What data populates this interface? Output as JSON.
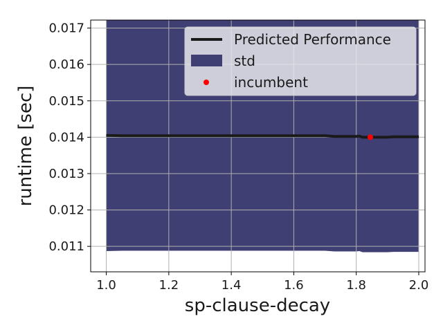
{
  "chart_data": {
    "type": "line",
    "xlabel": "sp-clause-decay",
    "ylabel": "runtime [sec]",
    "xlim": [
      0.95,
      2.02
    ],
    "ylim": [
      0.0103,
      0.01722
    ],
    "x_ticks": [
      1.0,
      1.2,
      1.4,
      1.6,
      1.8,
      2.0
    ],
    "x_tick_labels": [
      "1.0",
      "1.2",
      "1.4",
      "1.6",
      "1.8",
      "2.0"
    ],
    "y_ticks": [
      0.011,
      0.012,
      0.013,
      0.014,
      0.015,
      0.016,
      0.017
    ],
    "y_tick_labels": [
      "0.011",
      "0.012",
      "0.013",
      "0.014",
      "0.015",
      "0.016",
      "0.017"
    ],
    "grid": true,
    "legend_position": "top-right",
    "legend": [
      "Predicted Performance",
      "std",
      "incumbent"
    ],
    "series": [
      {
        "name": "Predicted Performance",
        "color": "#1a1a1a",
        "x": [
          1.0,
          1.05,
          1.1,
          1.2,
          1.3,
          1.4,
          1.5,
          1.6,
          1.7,
          1.73,
          1.75,
          1.8,
          1.81,
          1.82,
          1.85,
          1.9,
          1.92,
          1.95,
          2.0
        ],
        "y": [
          0.01405,
          0.01404,
          0.01404,
          0.01404,
          0.01404,
          0.01404,
          0.01404,
          0.01404,
          0.01404,
          0.01402,
          0.01402,
          0.01402,
          0.01403,
          0.014,
          0.014,
          0.014,
          0.01401,
          0.01401,
          0.01401
        ]
      },
      {
        "name": "std",
        "color": "#3f3f73",
        "x": [
          1.0,
          1.05,
          1.1,
          1.2,
          1.3,
          1.4,
          1.5,
          1.6,
          1.7,
          1.73,
          1.75,
          1.8,
          1.81,
          1.82,
          1.85,
          1.9,
          1.92,
          1.95,
          2.0
        ],
        "upper": [
          0.0176,
          0.0176,
          0.0176,
          0.0176,
          0.0176,
          0.0176,
          0.0176,
          0.0176,
          0.0176,
          0.0176,
          0.0176,
          0.0176,
          0.0176,
          0.0176,
          0.0176,
          0.0176,
          0.0176,
          0.0176,
          0.0176
        ],
        "lower": [
          0.01087,
          0.01088,
          0.01088,
          0.01088,
          0.01088,
          0.01088,
          0.01088,
          0.01088,
          0.01088,
          0.01086,
          0.01086,
          0.01086,
          0.01087,
          0.01084,
          0.01084,
          0.01084,
          0.01085,
          0.01085,
          0.01085
        ]
      },
      {
        "name": "incumbent",
        "color": "#ff0000",
        "x": [
          1.845
        ],
        "y": [
          0.014
        ]
      }
    ]
  }
}
